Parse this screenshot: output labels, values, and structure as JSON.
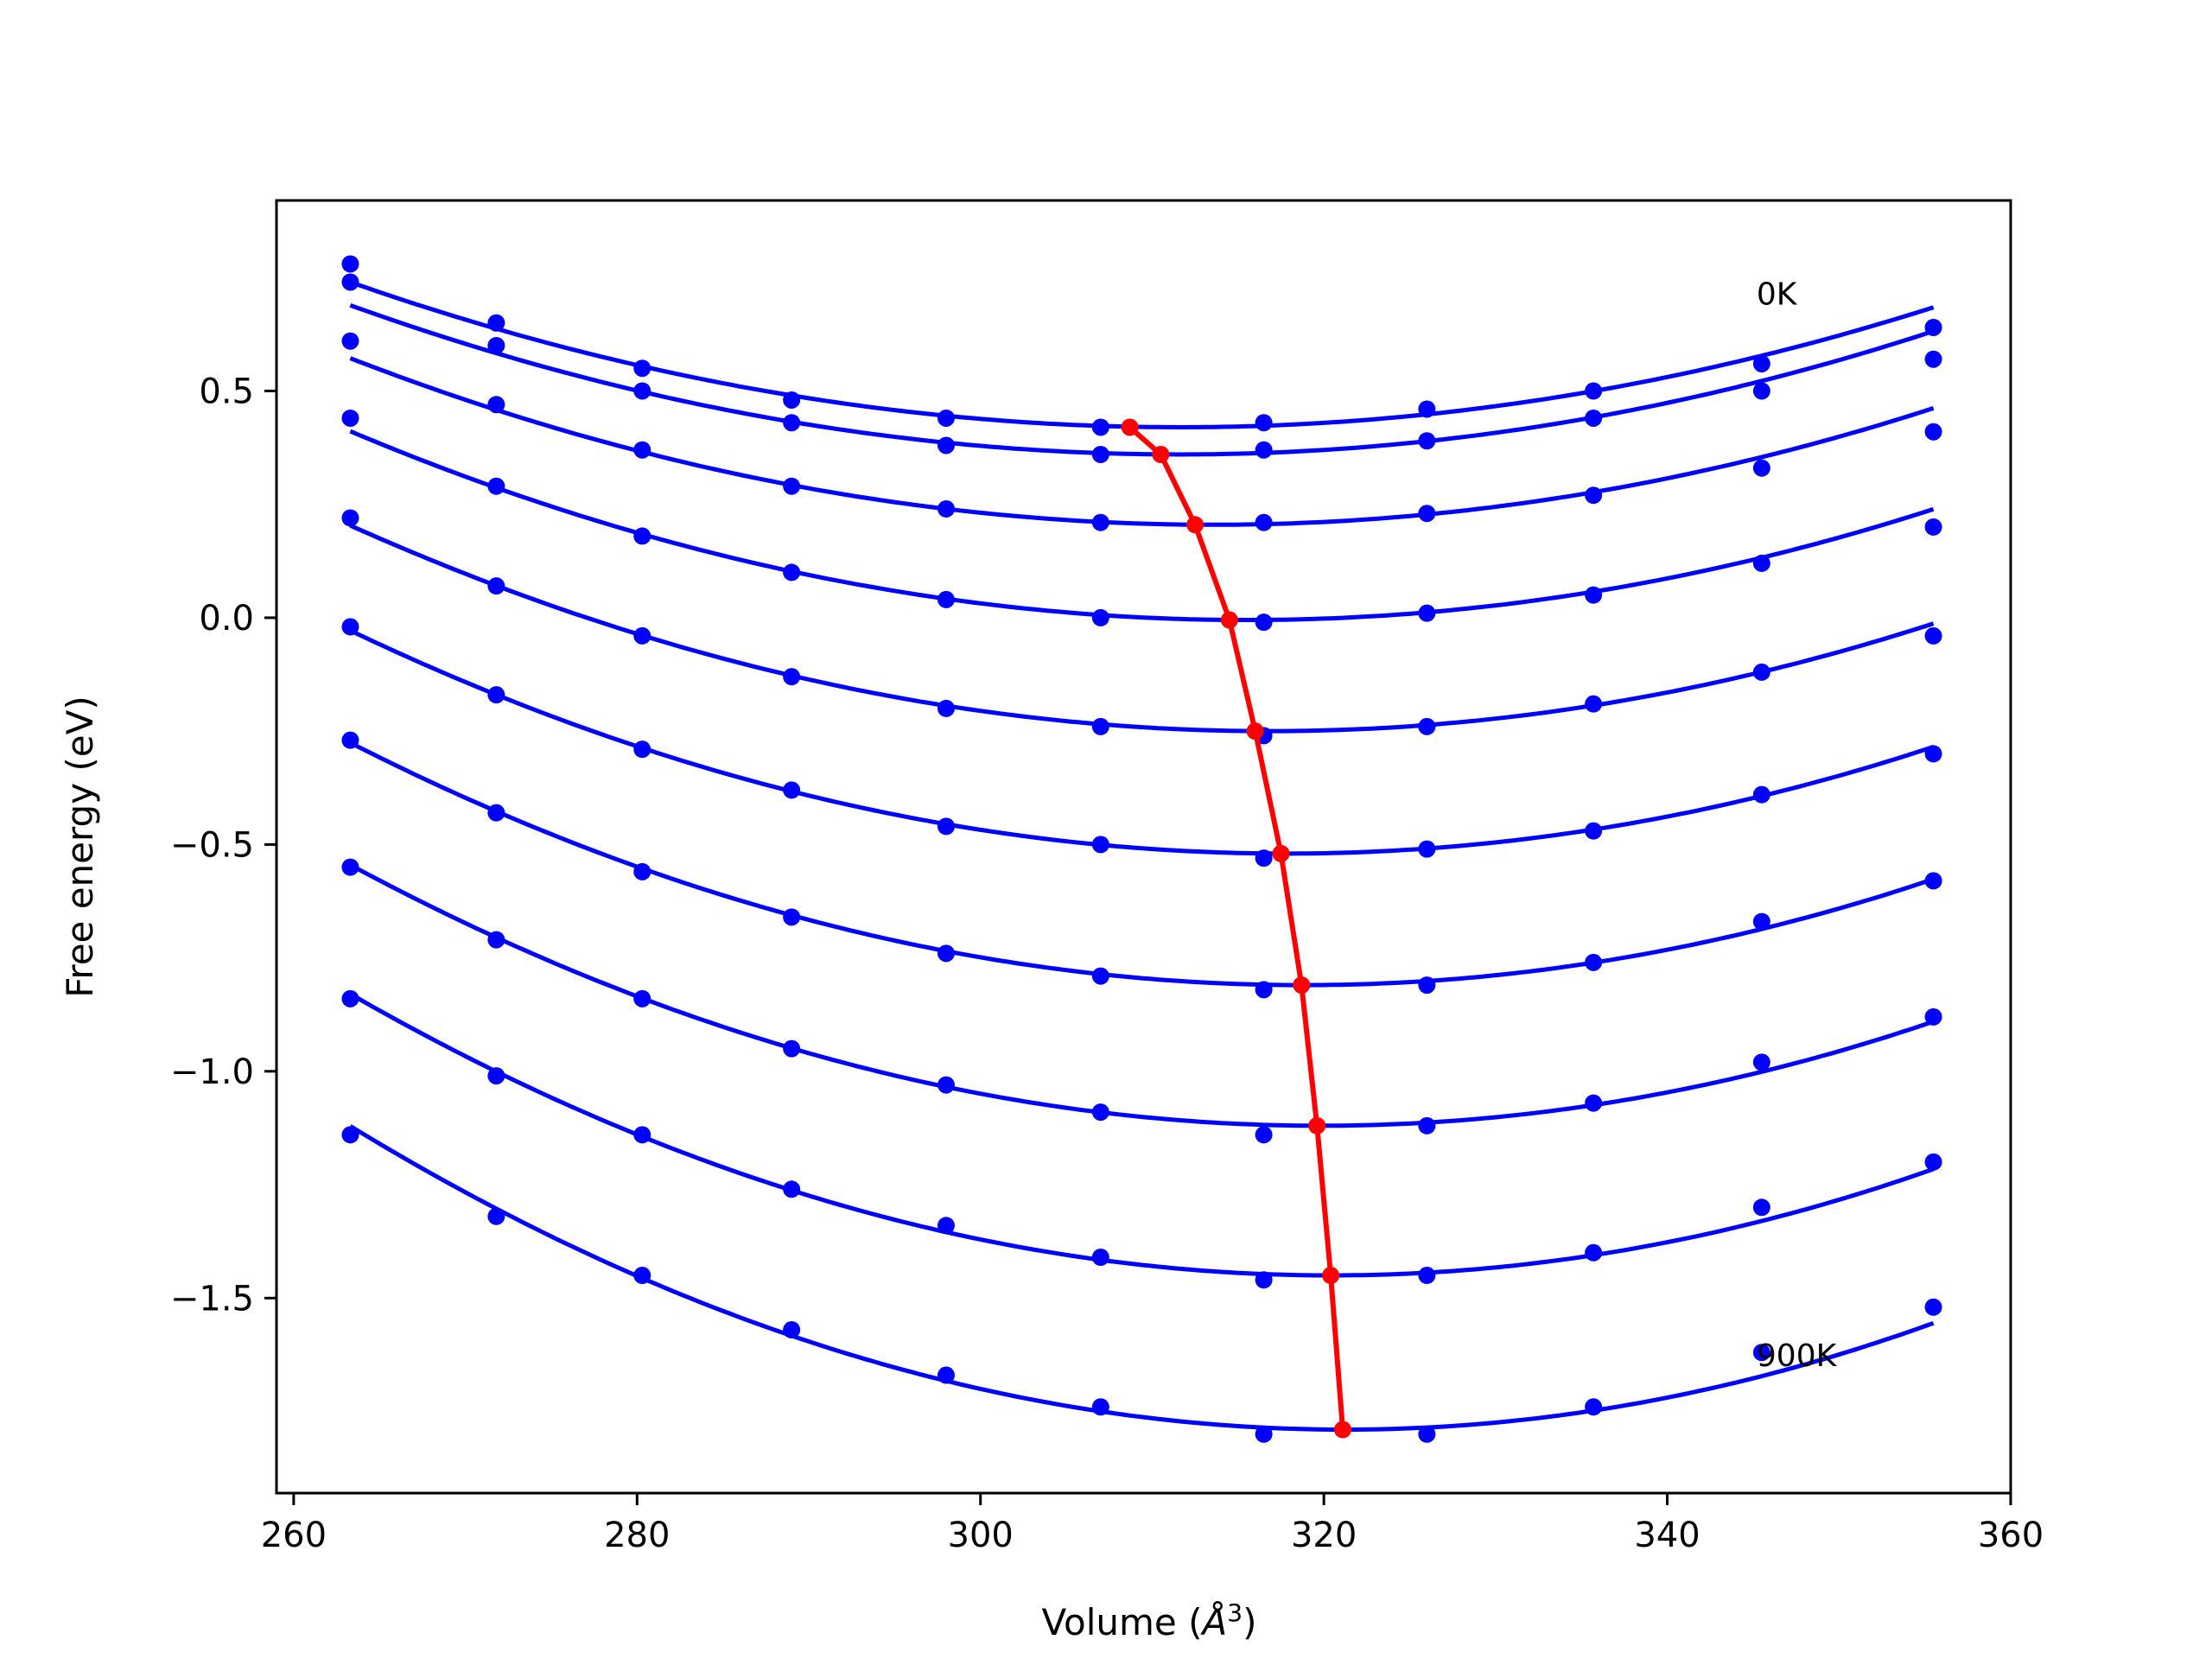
{
  "chart_data": {
    "type": "line",
    "title": "",
    "xlabel": "Volume (",
    "xlabel_symbol": "Å",
    "xlabel_exp": "3",
    "xlabel_close": ")",
    "ylabel": "Free energy (eV)",
    "xlim": [
      259,
      360
    ],
    "ylim": [
      -1.93,
      0.92
    ],
    "xticks": [
      260,
      280,
      300,
      320,
      340,
      360
    ],
    "yticks": [
      0.5,
      0.0,
      -0.5,
      -1.0,
      -1.5
    ],
    "xtick_labels": [
      "260",
      "280",
      "300",
      "320",
      "340",
      "360"
    ],
    "ytick_labels": [
      "0.5",
      "0.0",
      "−0.5",
      "−1.0",
      "−1.5"
    ],
    "grid": false,
    "annotations": [
      {
        "text": "0K",
        "x": 345.2,
        "y": 0.69
      },
      {
        "text": "900K",
        "x": 345.2,
        "y": -1.65
      }
    ],
    "x": [
      263.3,
      271.8,
      280.3,
      289.0,
      298.0,
      307.0,
      316.5,
      326.0,
      335.7,
      345.5,
      355.5
    ],
    "series": [
      {
        "values": [
          0.78,
          0.65,
          0.55,
          0.48,
          0.44,
          0.42,
          0.43,
          0.46,
          0.5,
          0.56,
          0.64
        ],
        "fit": [
          0.42,
          311.6
        ]
      },
      {
        "values": [
          0.74,
          0.6,
          0.5,
          0.43,
          0.38,
          0.36,
          0.37,
          0.39,
          0.44,
          0.5,
          0.57
        ],
        "fit": [
          0.36,
          311.6
        ]
      },
      {
        "values": [
          0.61,
          0.47,
          0.37,
          0.29,
          0.24,
          0.21,
          0.21,
          0.23,
          0.27,
          0.33,
          0.41
        ],
        "fit": [
          0.205,
          313.5
        ]
      },
      {
        "values": [
          0.44,
          0.29,
          0.18,
          0.1,
          0.04,
          0.0,
          -0.01,
          0.01,
          0.05,
          0.12,
          0.2
        ],
        "fit": [
          -0.005,
          315.5
        ]
      },
      {
        "values": [
          0.22,
          0.07,
          -0.04,
          -0.13,
          -0.2,
          -0.24,
          -0.26,
          -0.24,
          -0.19,
          -0.12,
          -0.04
        ],
        "fit": [
          -0.25,
          316.8
        ]
      },
      {
        "values": [
          -0.02,
          -0.17,
          -0.29,
          -0.38,
          -0.46,
          -0.5,
          -0.53,
          -0.51,
          -0.47,
          -0.39,
          -0.3
        ],
        "fit": [
          -0.52,
          317.8
        ]
      },
      {
        "values": [
          -0.27,
          -0.43,
          -0.56,
          -0.66,
          -0.74,
          -0.79,
          -0.82,
          -0.81,
          -0.76,
          -0.67,
          -0.58
        ],
        "fit": [
          -0.81,
          318.8
        ]
      },
      {
        "values": [
          -0.55,
          -0.71,
          -0.84,
          -0.95,
          -1.03,
          -1.09,
          -1.14,
          -1.12,
          -1.07,
          -0.98,
          -0.88
        ],
        "fit": [
          -1.12,
          319.8
        ]
      },
      {
        "values": [
          -0.84,
          -1.01,
          -1.14,
          -1.26,
          -1.34,
          -1.41,
          -1.46,
          -1.45,
          -1.4,
          -1.3,
          -1.2
        ],
        "fit": [
          -1.45,
          320.4
        ]
      },
      {
        "values": [
          -1.14,
          -1.32,
          -1.45,
          -1.57,
          -1.67,
          -1.74,
          -1.8,
          -1.8,
          -1.74,
          -1.62,
          -1.52
        ],
        "fit": [
          -1.79,
          321.2
        ]
      }
    ],
    "minima_curve": {
      "x": [
        308.7,
        310.5,
        312.5,
        314.5,
        316.0,
        317.5,
        318.7,
        319.6,
        320.4,
        321.1
      ],
      "y": [
        0.42,
        0.36,
        0.205,
        -0.005,
        -0.25,
        -0.52,
        -0.81,
        -1.12,
        -1.45,
        -1.79
      ]
    },
    "colors": {
      "series": "#0000ff",
      "minima": "#ff0000",
      "axes": "#000000"
    }
  }
}
